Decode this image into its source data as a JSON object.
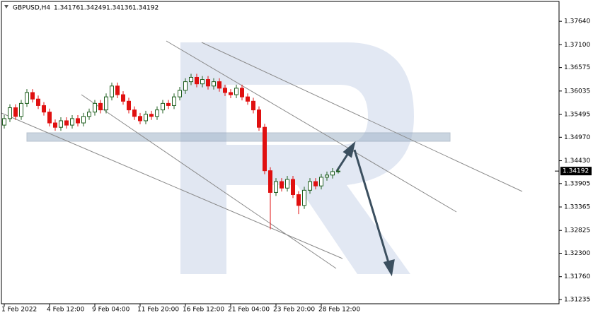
{
  "chart_data": {
    "type": "candlestick",
    "title": "GBPUSD,H4",
    "header_values": [
      1.34176,
      1.34249,
      1.34136,
      1.34192
    ],
    "categories": [
      "1 Feb 2022",
      null,
      null,
      null,
      null,
      null,
      null,
      null,
      "4 Feb 12:00",
      null,
      null,
      null,
      null,
      null,
      null,
      null,
      "9 Feb 04:00",
      null,
      null,
      null,
      null,
      null,
      null,
      null,
      "11 Feb 20:00",
      null,
      null,
      null,
      null,
      null,
      null,
      null,
      "16 Feb 12:00",
      null,
      null,
      null,
      null,
      null,
      null,
      null,
      "21 Feb 04:00",
      null,
      null,
      null,
      null,
      null,
      null,
      null,
      "23 Feb 20:00",
      null,
      null,
      null,
      null,
      null,
      null,
      null,
      "28 Feb 12:00",
      null,
      null,
      null
    ],
    "open": [
      1.3525,
      1.354,
      1.3565,
      1.3545,
      1.3575,
      1.36,
      1.3585,
      1.357,
      1.3555,
      1.353,
      1.352,
      1.3535,
      1.3525,
      1.354,
      1.353,
      1.3545,
      1.3555,
      1.3575,
      1.356,
      1.359,
      1.3615,
      1.3595,
      1.358,
      1.356,
      1.3545,
      1.3535,
      1.355,
      1.3545,
      1.356,
      1.3575,
      1.357,
      1.359,
      1.3605,
      1.3625,
      1.3635,
      1.362,
      1.363,
      1.3615,
      1.3625,
      1.361,
      1.36,
      1.3595,
      1.361,
      1.359,
      1.358,
      1.356,
      1.352,
      1.342,
      1.337,
      1.3395,
      1.338,
      1.34,
      1.3365,
      1.334,
      1.3375,
      1.3395,
      1.3385,
      1.3405,
      1.341,
      1.34176
    ],
    "high": [
      1.3548,
      1.3573,
      1.3573,
      1.3583,
      1.3608,
      1.3608,
      1.3593,
      1.3578,
      1.3563,
      1.3538,
      1.3543,
      1.3543,
      1.3548,
      1.3548,
      1.3553,
      1.3563,
      1.3583,
      1.3583,
      1.3598,
      1.3623,
      1.3623,
      1.3603,
      1.3588,
      1.3568,
      1.3553,
      1.3558,
      1.3558,
      1.3568,
      1.3583,
      1.3583,
      1.3598,
      1.3613,
      1.3633,
      1.3643,
      1.3643,
      1.3638,
      1.3638,
      1.3633,
      1.3633,
      1.3618,
      1.3608,
      1.3618,
      1.3618,
      1.3598,
      1.3588,
      1.3568,
      1.3528,
      1.3428,
      1.3403,
      1.3403,
      1.3408,
      1.3408,
      1.3373,
      1.3383,
      1.3403,
      1.3403,
      1.3413,
      1.3418,
      1.3426,
      1.34249
    ],
    "low": [
      1.3517,
      1.3532,
      1.3537,
      1.3537,
      1.3567,
      1.3577,
      1.3562,
      1.3547,
      1.3522,
      1.3512,
      1.3512,
      1.3517,
      1.3517,
      1.3522,
      1.3522,
      1.3537,
      1.3547,
      1.3552,
      1.3552,
      1.3582,
      1.3587,
      1.3572,
      1.3552,
      1.3537,
      1.3527,
      1.3527,
      1.3537,
      1.3537,
      1.3552,
      1.3562,
      1.3562,
      1.3582,
      1.3597,
      1.3617,
      1.3612,
      1.3612,
      1.3607,
      1.3607,
      1.3602,
      1.3592,
      1.3587,
      1.3587,
      1.3582,
      1.3572,
      1.3552,
      1.3512,
      1.3412,
      1.3285,
      1.3362,
      1.3372,
      1.3372,
      1.3357,
      1.332,
      1.3332,
      1.3367,
      1.3377,
      1.3377,
      1.3397,
      1.3402,
      1.34136
    ],
    "close": [
      1.354,
      1.3565,
      1.3545,
      1.3575,
      1.36,
      1.3585,
      1.357,
      1.3555,
      1.353,
      1.352,
      1.3535,
      1.3525,
      1.354,
      1.353,
      1.3545,
      1.3555,
      1.3575,
      1.356,
      1.359,
      1.3615,
      1.3595,
      1.358,
      1.356,
      1.3545,
      1.3535,
      1.355,
      1.3545,
      1.356,
      1.3575,
      1.357,
      1.359,
      1.3605,
      1.3625,
      1.3635,
      1.362,
      1.363,
      1.3615,
      1.3625,
      1.361,
      1.36,
      1.3595,
      1.361,
      1.359,
      1.358,
      1.356,
      1.352,
      1.342,
      1.337,
      1.3395,
      1.338,
      1.34,
      1.3365,
      1.334,
      1.3375,
      1.3395,
      1.3385,
      1.3405,
      1.341,
      1.3418,
      1.34192
    ],
    "up_color": "#1f5f1f",
    "down_color": "#e01010",
    "ylim": [
      1.31137,
      1.38098
    ],
    "yticks": [
      {
        "value": 1.3764,
        "label": "1.37640"
      },
      {
        "value": 1.371,
        "label": "1.37100"
      },
      {
        "value": 1.36575,
        "label": "1.36575"
      },
      {
        "value": 1.36035,
        "label": "1.36035"
      },
      {
        "value": 1.35495,
        "label": "1.35495"
      },
      {
        "value": 1.3497,
        "label": "1.34970"
      },
      {
        "value": 1.3443,
        "label": "1.34430"
      },
      {
        "value": 1.33905,
        "label": "1.33905"
      },
      {
        "value": 1.33365,
        "label": "1.33365"
      },
      {
        "value": 1.32825,
        "label": "1.32825"
      },
      {
        "value": 1.323,
        "label": "1.32300"
      },
      {
        "value": 1.3176,
        "label": "1.31760"
      },
      {
        "value": 1.31235,
        "label": "1.31235"
      }
    ],
    "grid": false
  }
}
